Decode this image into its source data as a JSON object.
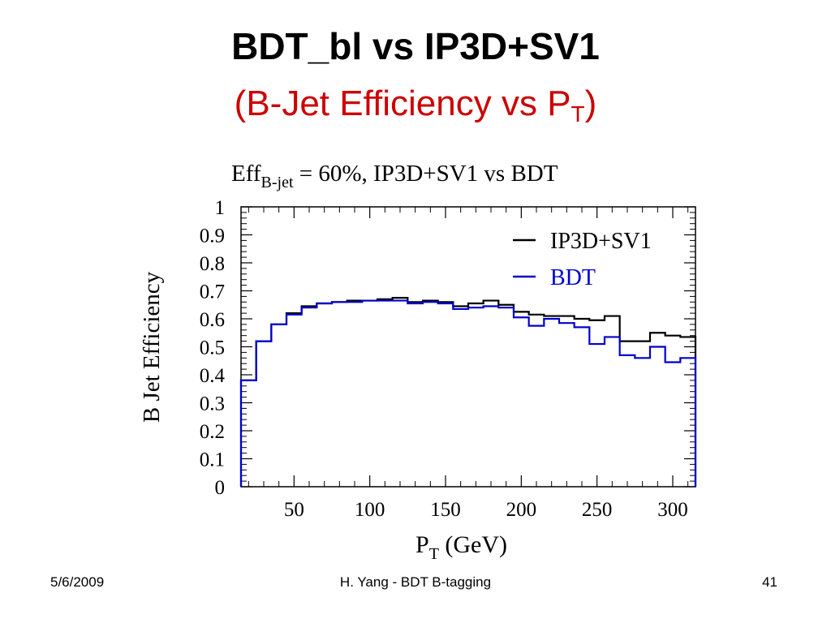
{
  "slide": {
    "title": "BDT_bl vs IP3D+SV1",
    "subtitle_main": "(B-Jet Efficiency vs P",
    "subtitle_sub": "T",
    "subtitle_end": ")"
  },
  "footer": {
    "date": "5/6/2009",
    "center": "H. Yang - BDT B-tagging",
    "page": "41"
  },
  "chart_data": {
    "type": "line",
    "title_main": "Eff",
    "title_sub": "B-jet",
    "title_rest": " = 60%, IP3D+SV1 vs BDT",
    "xlabel_main": "P",
    "xlabel_sub": "T",
    "xlabel_rest": " (GeV)",
    "ylabel": "B Jet Efficiency",
    "xlim": [
      15,
      315
    ],
    "ylim": [
      0,
      1
    ],
    "xticks": [
      "50",
      "100",
      "150",
      "200",
      "250",
      "300"
    ],
    "yticks": [
      "0",
      "0.1",
      "0.2",
      "0.3",
      "0.4",
      "0.5",
      "0.6",
      "0.7",
      "0.8",
      "0.9",
      "1"
    ],
    "legend_position": "top-right",
    "bin_edges": [
      15,
      25,
      35,
      45,
      55,
      65,
      75,
      85,
      95,
      105,
      115,
      125,
      135,
      145,
      155,
      165,
      175,
      185,
      195,
      205,
      215,
      225,
      235,
      245,
      255,
      265,
      275,
      285,
      295,
      305,
      315
    ],
    "series": [
      {
        "name": "IP3D+SV1",
        "color": "#000000",
        "values": [
          0.38,
          0.52,
          0.58,
          0.62,
          0.645,
          0.655,
          0.66,
          0.665,
          0.665,
          0.67,
          0.675,
          0.66,
          0.665,
          0.66,
          0.645,
          0.655,
          0.665,
          0.65,
          0.625,
          0.615,
          0.61,
          0.61,
          0.6,
          0.595,
          0.61,
          0.52,
          0.52,
          0.55,
          0.54,
          0.535
        ]
      },
      {
        "name": "BDT",
        "color": "#0000cc",
        "values": [
          0.38,
          0.52,
          0.58,
          0.615,
          0.64,
          0.655,
          0.66,
          0.66,
          0.665,
          0.665,
          0.665,
          0.655,
          0.66,
          0.655,
          0.635,
          0.64,
          0.645,
          0.64,
          0.605,
          0.575,
          0.6,
          0.585,
          0.57,
          0.51,
          0.535,
          0.47,
          0.46,
          0.5,
          0.445,
          0.46
        ]
      }
    ]
  }
}
